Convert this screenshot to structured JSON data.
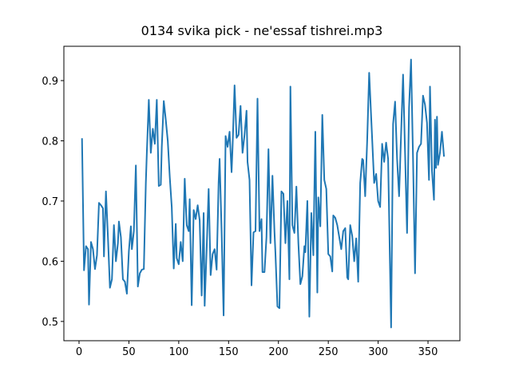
{
  "chart_data": {
    "type": "line",
    "title": "0134 svika pick - ne'essaf tishrei.mp3",
    "x": [
      3,
      5,
      7,
      9,
      10,
      12,
      14,
      16,
      18,
      20,
      22,
      24,
      25,
      27,
      29,
      31,
      33,
      35,
      37,
      39,
      40,
      42,
      44,
      46,
      48,
      50,
      52,
      53,
      55,
      57,
      59,
      61,
      63,
      65,
      67,
      68,
      70,
      72,
      74,
      76,
      78,
      80,
      82,
      83,
      85,
      87,
      89,
      91,
      93,
      95,
      97,
      98,
      100,
      102,
      104,
      106,
      108,
      110,
      111,
      113,
      115,
      117,
      119,
      121,
      123,
      125,
      126,
      128,
      130,
      132,
      134,
      136,
      138,
      140,
      141,
      143,
      145,
      147,
      149,
      151,
      153,
      154,
      156,
      158,
      160,
      162,
      164,
      166,
      168,
      169,
      171,
      173,
      175,
      177,
      179,
      181,
      183,
      184,
      186,
      188,
      190,
      192,
      194,
      196,
      197,
      199,
      201,
      203,
      205,
      207,
      209,
      211,
      212,
      214,
      216,
      218,
      220,
      222,
      224,
      226,
      227,
      229,
      231,
      233,
      235,
      237,
      239,
      240,
      242,
      244,
      246,
      248,
      250,
      252,
      254,
      255,
      257,
      259,
      261,
      263,
      265,
      267,
      269,
      270,
      272,
      274,
      276,
      278,
      280,
      282,
      284,
      285,
      287,
      289,
      291,
      296,
      298,
      300,
      302,
      304,
      306,
      308,
      310,
      313,
      315,
      317,
      319,
      321,
      323,
      325,
      327,
      329,
      331,
      333,
      335,
      337,
      339,
      341,
      343,
      345,
      347,
      349,
      351,
      352,
      354,
      356,
      357,
      358,
      359,
      360,
      362,
      364,
      366
    ],
    "values": [
      0.803,
      0.585,
      0.625,
      0.62,
      0.528,
      0.632,
      0.62,
      0.587,
      0.61,
      0.697,
      0.693,
      0.688,
      0.608,
      0.716,
      0.64,
      0.556,
      0.57,
      0.66,
      0.6,
      0.63,
      0.666,
      0.64,
      0.57,
      0.566,
      0.546,
      0.617,
      0.658,
      0.62,
      0.65,
      0.759,
      0.558,
      0.58,
      0.586,
      0.587,
      0.73,
      0.78,
      0.868,
      0.78,
      0.82,
      0.795,
      0.868,
      0.725,
      0.727,
      0.79,
      0.866,
      0.835,
      0.8,
      0.74,
      0.69,
      0.588,
      0.662,
      0.605,
      0.595,
      0.632,
      0.6,
      0.737,
      0.66,
      0.65,
      0.703,
      0.527,
      0.685,
      0.67,
      0.693,
      0.668,
      0.543,
      0.68,
      0.526,
      0.62,
      0.72,
      0.577,
      0.612,
      0.62,
      0.586,
      0.73,
      0.77,
      0.65,
      0.51,
      0.808,
      0.79,
      0.815,
      0.748,
      0.79,
      0.892,
      0.805,
      0.81,
      0.858,
      0.78,
      0.81,
      0.85,
      0.765,
      0.735,
      0.56,
      0.648,
      0.65,
      0.87,
      0.65,
      0.67,
      0.582,
      0.582,
      0.64,
      0.786,
      0.63,
      0.742,
      0.65,
      0.613,
      0.525,
      0.522,
      0.716,
      0.712,
      0.63,
      0.7,
      0.57,
      0.89,
      0.66,
      0.647,
      0.724,
      0.63,
      0.562,
      0.575,
      0.625,
      0.615,
      0.7,
      0.508,
      0.68,
      0.61,
      0.815,
      0.548,
      0.706,
      0.658,
      0.843,
      0.735,
      0.72,
      0.612,
      0.608,
      0.583,
      0.676,
      0.672,
      0.66,
      0.64,
      0.62,
      0.65,
      0.655,
      0.573,
      0.57,
      0.66,
      0.642,
      0.6,
      0.638,
      0.566,
      0.73,
      0.77,
      0.768,
      0.708,
      0.8,
      0.913,
      0.73,
      0.745,
      0.7,
      0.69,
      0.795,
      0.765,
      0.797,
      0.77,
      0.49,
      0.828,
      0.865,
      0.77,
      0.708,
      0.81,
      0.91,
      0.78,
      0.647,
      0.855,
      0.935,
      0.77,
      0.58,
      0.78,
      0.79,
      0.795,
      0.875,
      0.86,
      0.83,
      0.735,
      0.89,
      0.75,
      0.702,
      0.835,
      0.755,
      0.84,
      0.76,
      0.78,
      0.815,
      0.775
    ],
    "color": "#1f77b4",
    "xlim": [
      -15.2,
      382
    ],
    "xticks": [
      0,
      50,
      100,
      150,
      200,
      250,
      300,
      350
    ],
    "ylim": [
      0.468,
      0.957
    ],
    "yticks": [
      0.5,
      0.6,
      0.7,
      0.8,
      0.9
    ]
  }
}
